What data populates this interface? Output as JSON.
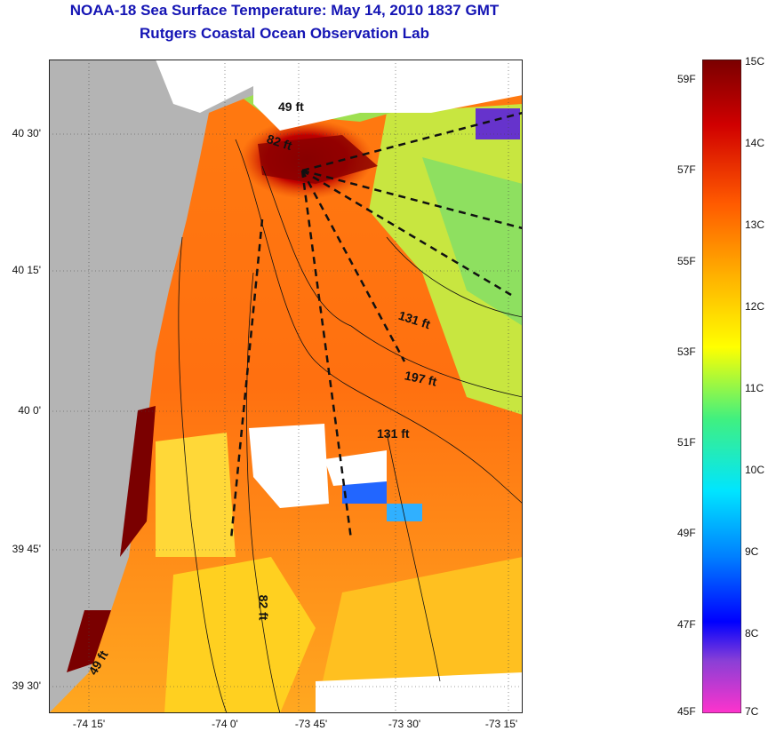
{
  "header": {
    "title": "NOAA-18 Sea Surface Temperature:  May 14, 2010 1837 GMT",
    "subtitle": "Rutgers Coastal Ocean Observation Lab"
  },
  "map": {
    "lat_ticks": [
      "40 30'",
      "40 15'",
      "40 0'",
      "39 45'",
      "39 30'"
    ],
    "lon_ticks": [
      "-74 15'",
      "-74 0'",
      "-73 45'",
      "-73 30'",
      "-73 15'"
    ],
    "depth_labels": [
      "49 ft",
      "82 ft",
      "131 ft",
      "197 ft",
      "131 ft",
      "82 ft",
      "49 ft"
    ],
    "land_color": "#b4b4b4",
    "cloud_color": "#ffffff"
  },
  "colorbar": {
    "fahrenheit_labels": [
      "59F",
      "57F",
      "55F",
      "53F",
      "51F",
      "49F",
      "47F",
      "45F"
    ],
    "celsius_labels": [
      "15C",
      "14C",
      "13C",
      "12C",
      "11C",
      "10C",
      "9C",
      "8C",
      "7C"
    ],
    "range_c": [
      7,
      15
    ],
    "colors": [
      "#ff33cc",
      "#8a3fd6",
      "#0000ff",
      "#0080ff",
      "#00e5ff",
      "#40f080",
      "#ffff00",
      "#ffb000",
      "#ff5a00",
      "#d00000",
      "#7a0000"
    ]
  }
}
